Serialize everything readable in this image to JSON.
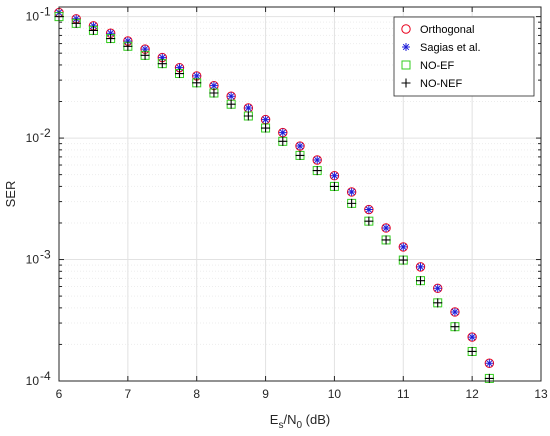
{
  "chart_data": {
    "type": "scatter",
    "xlabel": {
      "base": "E",
      "sub1": "s",
      "mid": "/N",
      "sub2": "0",
      "tail": " (dB)"
    },
    "ylabel": "SER",
    "xlim": [
      6,
      13
    ],
    "ylim": [
      0.0001,
      0.12
    ],
    "yscale": "log",
    "grid": true,
    "legend_position": "top-right",
    "x_ticks": [
      "6",
      "7",
      "8",
      "9",
      "10",
      "11",
      "12",
      "13"
    ],
    "y_ticks": [
      {
        "base": "10",
        "exp": "-1",
        "value": 0.1
      },
      {
        "base": "10",
        "exp": "-2",
        "value": 0.01
      },
      {
        "base": "10",
        "exp": "-3",
        "value": 0.001
      },
      {
        "base": "10",
        "exp": "-4",
        "value": 0.0001
      }
    ],
    "x": [
      6,
      6.25,
      6.5,
      6.75,
      7,
      7.25,
      7.5,
      7.75,
      8,
      8.25,
      8.5,
      8.75,
      9,
      9.25,
      9.5,
      9.75,
      10,
      10.25,
      10.5,
      10.75,
      11,
      11.25,
      11.5,
      11.75,
      12,
      12.25
    ],
    "series": [
      {
        "name": "Orthogonal",
        "marker": "circle",
        "color": "#e8001c",
        "values": [
          0.108,
          0.096,
          0.084,
          0.073,
          0.063,
          0.054,
          0.046,
          0.038,
          0.0325,
          0.027,
          0.0221,
          0.0177,
          0.0142,
          0.0111,
          0.0086,
          0.0066,
          0.0049,
          0.0036,
          0.00258,
          0.00182,
          0.00127,
          0.00087,
          0.00058,
          0.00037,
          0.00023,
          0.00014
        ]
      },
      {
        "name": "Sagias et al.",
        "marker": "asterisk",
        "color": "#1f1fd9",
        "values": [
          0.108,
          0.096,
          0.084,
          0.073,
          0.063,
          0.054,
          0.046,
          0.038,
          0.0325,
          0.027,
          0.0221,
          0.0177,
          0.0142,
          0.0111,
          0.0086,
          0.0066,
          0.0049,
          0.0036,
          0.00258,
          0.00182,
          0.00127,
          0.00087,
          0.00058,
          0.00037,
          0.00023,
          0.00014
        ]
      },
      {
        "name": "NO-EF",
        "marker": "square",
        "color": "#33cc1f",
        "values": [
          0.1,
          0.088,
          0.077,
          0.066,
          0.057,
          0.048,
          0.041,
          0.034,
          0.0285,
          0.0235,
          0.019,
          0.0152,
          0.0121,
          0.0094,
          0.0072,
          0.0054,
          0.004,
          0.0029,
          0.00207,
          0.00145,
          0.00099,
          0.00067,
          0.00044,
          0.00028,
          0.000175,
          0.000105
        ]
      },
      {
        "name": "NO-NEF",
        "marker": "plus",
        "color": "#000000",
        "values": [
          0.1,
          0.088,
          0.077,
          0.066,
          0.057,
          0.048,
          0.041,
          0.034,
          0.0285,
          0.0235,
          0.019,
          0.0152,
          0.0121,
          0.0094,
          0.0072,
          0.0054,
          0.004,
          0.0029,
          0.00207,
          0.00145,
          0.00099,
          0.00067,
          0.00044,
          0.00028,
          0.000175,
          0.000105
        ]
      }
    ]
  }
}
